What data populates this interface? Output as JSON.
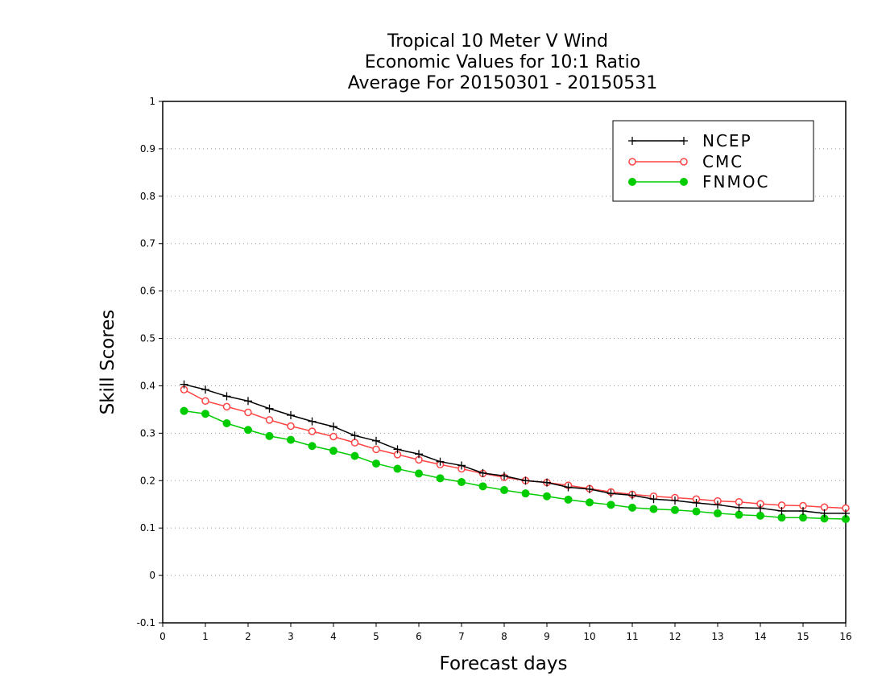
{
  "chart_data": {
    "type": "line",
    "title_lines": [
      "Tropical 10 Meter V Wind",
      "Economic Values for 10:1 Ratio",
      "Average For 20150301 - 20150531"
    ],
    "xlabel": "Forecast days",
    "ylabel": "Skill Scores",
    "xlim": [
      0,
      16
    ],
    "ylim": [
      -0.1,
      1
    ],
    "xticks": [
      0,
      1,
      2,
      3,
      4,
      5,
      6,
      7,
      8,
      9,
      10,
      11,
      12,
      13,
      14,
      15,
      16
    ],
    "yticks": [
      -0.1,
      0,
      0.1,
      0.2,
      0.3,
      0.4,
      0.5,
      0.6,
      0.7,
      0.8,
      0.9,
      1
    ],
    "ytick_labels": [
      "-0.1",
      "0",
      "0.1",
      "0.2",
      "0.3",
      "0.4",
      "0.5",
      "0.6",
      "0.7",
      "0.8",
      "0.9",
      "1"
    ],
    "grid": "horizontal-dotted",
    "legend_position": "top-right",
    "x": [
      0.5,
      1,
      1.5,
      2,
      2.5,
      3,
      3.5,
      4,
      4.5,
      5,
      5.5,
      6,
      6.5,
      7,
      7.5,
      8,
      8.5,
      9,
      9.5,
      10,
      10.5,
      11,
      11.5,
      12,
      12.5,
      13,
      13.5,
      14,
      14.5,
      15,
      15.5,
      16
    ],
    "series": [
      {
        "name": "NCEP",
        "color": "#000000",
        "marker": "plus",
        "values": [
          0.403,
          0.392,
          0.378,
          0.368,
          0.352,
          0.338,
          0.325,
          0.314,
          0.295,
          0.284,
          0.266,
          0.256,
          0.24,
          0.232,
          0.216,
          0.21,
          0.2,
          0.196,
          0.186,
          0.182,
          0.173,
          0.169,
          0.161,
          0.158,
          0.153,
          0.149,
          0.143,
          0.142,
          0.136,
          0.136,
          0.131,
          0.131
        ]
      },
      {
        "name": "CMC",
        "color": "#ff4444",
        "marker": "open-circle",
        "values": [
          0.392,
          0.368,
          0.356,
          0.344,
          0.328,
          0.315,
          0.304,
          0.293,
          0.28,
          0.266,
          0.255,
          0.244,
          0.234,
          0.225,
          0.215,
          0.207,
          0.2,
          0.196,
          0.19,
          0.183,
          0.176,
          0.171,
          0.167,
          0.164,
          0.161,
          0.157,
          0.155,
          0.151,
          0.148,
          0.147,
          0.144,
          0.142
        ]
      },
      {
        "name": "FNMOC",
        "color": "#00cc00",
        "marker": "filled-circle",
        "values": [
          0.347,
          0.341,
          0.321,
          0.307,
          0.294,
          0.286,
          0.273,
          0.263,
          0.252,
          0.236,
          0.225,
          0.215,
          0.205,
          0.197,
          0.188,
          0.18,
          0.173,
          0.167,
          0.16,
          0.154,
          0.149,
          0.143,
          0.14,
          0.138,
          0.135,
          0.131,
          0.128,
          0.126,
          0.122,
          0.122,
          0.12,
          0.119
        ]
      }
    ]
  }
}
